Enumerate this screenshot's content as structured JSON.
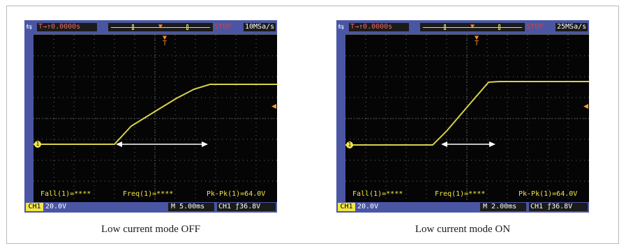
{
  "panels": [
    {
      "caption": "Low current mode OFF",
      "topbar": {
        "usb_icon": "usb-icon",
        "trig_pos": "T→↑0.0000s",
        "status": "STOP",
        "sample_rate": "10MSa/s"
      },
      "measurements": {
        "fall": "Fall(1)=****",
        "freq": "Freq(1)=****",
        "pkpk": "Pk-Pk(1)=64.0V"
      },
      "bottombar": {
        "channel": "CH1",
        "volts_div": "20.0V",
        "timebase": "M 5.00ms",
        "trigger": "CH1 ƒ36.8V"
      }
    },
    {
      "caption": "Low current mode ON",
      "topbar": {
        "usb_icon": "usb-icon",
        "trig_pos": "T→↑0.0000s",
        "status": "STOP",
        "sample_rate": "25MSa/s"
      },
      "measurements": {
        "fall": "Fall(1)=****",
        "freq": "Freq(1)=****",
        "pkpk": "Pk-Pk(1)=64.0V"
      },
      "bottombar": {
        "channel": "CH1",
        "volts_div": "20.0V",
        "timebase": "M 2.00ms",
        "trigger": "CH1 ƒ36.8V"
      }
    }
  ],
  "colors": {
    "bezel": "#4a56a4",
    "screen": "#050505",
    "trace": "#d8d24a",
    "grid": "#6b6b6b",
    "stop": "#e23b2e"
  }
}
